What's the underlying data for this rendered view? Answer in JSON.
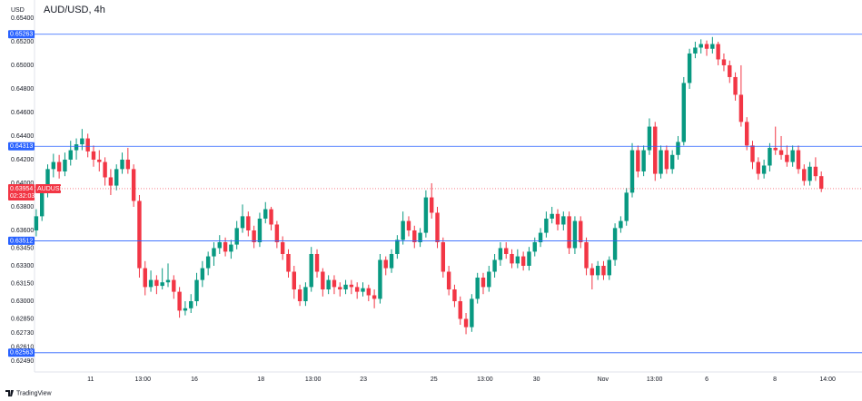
{
  "chart_data": {
    "type": "candlestick",
    "title": "AUD/USD, 4h",
    "y_label": "USD",
    "branding": "TradingView",
    "up_color": "#089981",
    "down_color": "#f23645",
    "level_color": "#2962ff",
    "grid": false,
    "ylim": [
      0.624,
      0.65515
    ],
    "xlim": [
      -0.3,
      144.1
    ],
    "yticks": [
      {
        "value": 0.654,
        "label": "0.65400"
      },
      {
        "value": 0.652,
        "label": "0.65200"
      },
      {
        "value": 0.65,
        "label": "0.65000"
      },
      {
        "value": 0.648,
        "label": "0.64800"
      },
      {
        "value": 0.646,
        "label": "0.64600"
      },
      {
        "value": 0.644,
        "label": "0.64400"
      },
      {
        "value": 0.642,
        "label": "0.64200"
      },
      {
        "value": 0.64,
        "label": "0.64000"
      },
      {
        "value": 0.638,
        "label": "0.63800"
      },
      {
        "value": 0.636,
        "label": "0.63600"
      },
      {
        "value": 0.6345,
        "label": "0.63450"
      },
      {
        "value": 0.633,
        "label": "0.63300"
      },
      {
        "value": 0.6315,
        "label": "0.63150"
      },
      {
        "value": 0.63,
        "label": "0.63000"
      },
      {
        "value": 0.6285,
        "label": "0.62850"
      },
      {
        "value": 0.6273,
        "label": "0.62730"
      },
      {
        "value": 0.6261,
        "label": "0.62610"
      },
      {
        "value": 0.6249,
        "label": "0.62490"
      }
    ],
    "xticks": [
      {
        "value": 9.5,
        "label": "11"
      },
      {
        "value": 18.6,
        "label": "13:00"
      },
      {
        "value": 27.6,
        "label": "16"
      },
      {
        "value": 39.2,
        "label": "18"
      },
      {
        "value": 48.3,
        "label": "13:00"
      },
      {
        "value": 57.1,
        "label": "23"
      },
      {
        "value": 69.4,
        "label": "25"
      },
      {
        "value": 78.3,
        "label": "13:00"
      },
      {
        "value": 87.3,
        "label": "30"
      },
      {
        "value": 98.9,
        "label": "Nov"
      },
      {
        "value": 107.9,
        "label": "13:00"
      },
      {
        "value": 117,
        "label": "6"
      },
      {
        "value": 128.9,
        "label": "8"
      },
      {
        "value": 138.1,
        "label": "14:00"
      }
    ],
    "levels": [
      {
        "value": 0.65263,
        "label": "0.65263"
      },
      {
        "value": 0.64313,
        "label": "0.64313"
      },
      {
        "value": 0.63512,
        "label": "0.63512"
      },
      {
        "value": 0.62563,
        "label": "0.62563"
      }
    ],
    "last_price": {
      "value": 0.63954,
      "label": "0.63954",
      "countdown": "02:32:03",
      "symbol": "AUDUSD"
    },
    "candles": [
      [
        0.636,
        0.6378,
        0.6355,
        0.6372
      ],
      [
        0.6372,
        0.6395,
        0.6368,
        0.6392
      ],
      [
        0.6392,
        0.6416,
        0.6388,
        0.6412
      ],
      [
        0.6412,
        0.6425,
        0.6405,
        0.6418
      ],
      [
        0.6418,
        0.6424,
        0.6404,
        0.641
      ],
      [
        0.641,
        0.6426,
        0.6406,
        0.642
      ],
      [
        0.642,
        0.6436,
        0.6415,
        0.6428
      ],
      [
        0.6428,
        0.6438,
        0.642,
        0.6433
      ],
      [
        0.6433,
        0.6446,
        0.6428,
        0.6438
      ],
      [
        0.6438,
        0.6442,
        0.6422,
        0.6427
      ],
      [
        0.6427,
        0.6432,
        0.6414,
        0.642
      ],
      [
        0.642,
        0.6428,
        0.641,
        0.6418
      ],
      [
        0.6418,
        0.6422,
        0.6398,
        0.6405
      ],
      [
        0.6405,
        0.6412,
        0.639,
        0.6398
      ],
      [
        0.6398,
        0.6416,
        0.6394,
        0.6412
      ],
      [
        0.6412,
        0.6426,
        0.6408,
        0.642
      ],
      [
        0.642,
        0.643,
        0.6408,
        0.6412
      ],
      [
        0.6412,
        0.6416,
        0.638,
        0.6385
      ],
      [
        0.6385,
        0.639,
        0.632,
        0.6328
      ],
      [
        0.6328,
        0.6334,
        0.6305,
        0.6312
      ],
      [
        0.6312,
        0.6326,
        0.6308,
        0.6318
      ],
      [
        0.6318,
        0.6322,
        0.6306,
        0.6313
      ],
      [
        0.6313,
        0.6328,
        0.631,
        0.6316
      ],
      [
        0.6316,
        0.6332,
        0.6312,
        0.6318
      ],
      [
        0.6318,
        0.6322,
        0.6302,
        0.6308
      ],
      [
        0.6308,
        0.6312,
        0.6286,
        0.6292
      ],
      [
        0.6292,
        0.63,
        0.6288,
        0.6294
      ],
      [
        0.6294,
        0.6306,
        0.629,
        0.63
      ],
      [
        0.63,
        0.6324,
        0.6296,
        0.6318
      ],
      [
        0.6318,
        0.6334,
        0.6312,
        0.6328
      ],
      [
        0.6328,
        0.6342,
        0.6322,
        0.6338
      ],
      [
        0.6338,
        0.635,
        0.633,
        0.6345
      ],
      [
        0.6345,
        0.6356,
        0.634,
        0.635
      ],
      [
        0.635,
        0.6354,
        0.6338,
        0.6342
      ],
      [
        0.6342,
        0.6352,
        0.6336,
        0.6348
      ],
      [
        0.6348,
        0.6368,
        0.6344,
        0.6362
      ],
      [
        0.6362,
        0.6382,
        0.6358,
        0.6372
      ],
      [
        0.6372,
        0.6376,
        0.6355,
        0.636
      ],
      [
        0.636,
        0.6364,
        0.6345,
        0.635
      ],
      [
        0.635,
        0.6375,
        0.6346,
        0.637
      ],
      [
        0.637,
        0.6384,
        0.6366,
        0.6378
      ],
      [
        0.6378,
        0.638,
        0.636,
        0.6365
      ],
      [
        0.6365,
        0.6368,
        0.6345,
        0.635
      ],
      [
        0.635,
        0.6355,
        0.6335,
        0.634
      ],
      [
        0.634,
        0.6344,
        0.632,
        0.6325
      ],
      [
        0.6325,
        0.633,
        0.6302,
        0.631
      ],
      [
        0.631,
        0.6314,
        0.6296,
        0.63
      ],
      [
        0.63,
        0.6316,
        0.6296,
        0.6312
      ],
      [
        0.6312,
        0.6346,
        0.6308,
        0.634
      ],
      [
        0.634,
        0.6344,
        0.632,
        0.6325
      ],
      [
        0.6325,
        0.6328,
        0.6304,
        0.631
      ],
      [
        0.631,
        0.6322,
        0.6306,
        0.6318
      ],
      [
        0.6318,
        0.6322,
        0.6306,
        0.6312
      ],
      [
        0.6312,
        0.6316,
        0.6304,
        0.631
      ],
      [
        0.631,
        0.6318,
        0.6306,
        0.6314
      ],
      [
        0.6314,
        0.6318,
        0.6306,
        0.6312
      ],
      [
        0.6312,
        0.6316,
        0.6302,
        0.6308
      ],
      [
        0.6308,
        0.6316,
        0.6304,
        0.6311
      ],
      [
        0.6311,
        0.6314,
        0.63,
        0.6305
      ],
      [
        0.6305,
        0.631,
        0.6294,
        0.6302
      ],
      [
        0.6302,
        0.634,
        0.6298,
        0.6335
      ],
      [
        0.6335,
        0.6338,
        0.6322,
        0.6328
      ],
      [
        0.6328,
        0.6344,
        0.6324,
        0.634
      ],
      [
        0.634,
        0.6356,
        0.6336,
        0.6352
      ],
      [
        0.6352,
        0.6376,
        0.6348,
        0.6368
      ],
      [
        0.6368,
        0.6372,
        0.6355,
        0.636
      ],
      [
        0.636,
        0.6364,
        0.6345,
        0.635
      ],
      [
        0.635,
        0.6362,
        0.6346,
        0.6358
      ],
      [
        0.6358,
        0.6394,
        0.6354,
        0.6388
      ],
      [
        0.6388,
        0.64,
        0.637,
        0.6375
      ],
      [
        0.6375,
        0.638,
        0.6345,
        0.635
      ],
      [
        0.635,
        0.6354,
        0.632,
        0.6325
      ],
      [
        0.6325,
        0.633,
        0.6305,
        0.631
      ],
      [
        0.631,
        0.6314,
        0.6295,
        0.63
      ],
      [
        0.63,
        0.6304,
        0.628,
        0.6285
      ],
      [
        0.6285,
        0.629,
        0.6272,
        0.6278
      ],
      [
        0.6278,
        0.6306,
        0.6274,
        0.6302
      ],
      [
        0.6302,
        0.6324,
        0.6298,
        0.632
      ],
      [
        0.632,
        0.6324,
        0.6306,
        0.6312
      ],
      [
        0.6312,
        0.633,
        0.6308,
        0.6325
      ],
      [
        0.6325,
        0.634,
        0.632,
        0.6335
      ],
      [
        0.6335,
        0.635,
        0.633,
        0.6345
      ],
      [
        0.6345,
        0.635,
        0.6336,
        0.634
      ],
      [
        0.634,
        0.6344,
        0.6328,
        0.6332
      ],
      [
        0.6332,
        0.6344,
        0.6328,
        0.6338
      ],
      [
        0.6338,
        0.6342,
        0.6326,
        0.633
      ],
      [
        0.633,
        0.6346,
        0.6326,
        0.6342
      ],
      [
        0.6342,
        0.6354,
        0.6338,
        0.635
      ],
      [
        0.635,
        0.6362,
        0.6346,
        0.6358
      ],
      [
        0.6358,
        0.6376,
        0.6354,
        0.637
      ],
      [
        0.637,
        0.638,
        0.6366,
        0.6374
      ],
      [
        0.6374,
        0.6378,
        0.636,
        0.6365
      ],
      [
        0.6365,
        0.6376,
        0.636,
        0.6372
      ],
      [
        0.6372,
        0.6376,
        0.634,
        0.6345
      ],
      [
        0.6345,
        0.6372,
        0.634,
        0.6368
      ],
      [
        0.6368,
        0.6372,
        0.6345,
        0.635
      ],
      [
        0.635,
        0.6354,
        0.6322,
        0.6328
      ],
      [
        0.6328,
        0.6332,
        0.631,
        0.6322
      ],
      [
        0.6322,
        0.6334,
        0.6318,
        0.633
      ],
      [
        0.633,
        0.6334,
        0.6318,
        0.6322
      ],
      [
        0.6322,
        0.6338,
        0.6318,
        0.6335
      ],
      [
        0.6335,
        0.6366,
        0.633,
        0.6362
      ],
      [
        0.6362,
        0.6372,
        0.6358,
        0.6368
      ],
      [
        0.6368,
        0.6396,
        0.6364,
        0.6392
      ],
      [
        0.6392,
        0.6434,
        0.6388,
        0.6428
      ],
      [
        0.6428,
        0.6432,
        0.6405,
        0.641
      ],
      [
        0.641,
        0.6432,
        0.6406,
        0.6428
      ],
      [
        0.6428,
        0.6455,
        0.6424,
        0.6448
      ],
      [
        0.6448,
        0.6452,
        0.6402,
        0.6408
      ],
      [
        0.6408,
        0.6432,
        0.6404,
        0.6428
      ],
      [
        0.6428,
        0.6432,
        0.6408,
        0.6412
      ],
      [
        0.6412,
        0.6428,
        0.6408,
        0.6424
      ],
      [
        0.6424,
        0.644,
        0.642,
        0.6435
      ],
      [
        0.6435,
        0.649,
        0.6432,
        0.6485
      ],
      [
        0.6485,
        0.6514,
        0.648,
        0.651
      ],
      [
        0.651,
        0.652,
        0.6506,
        0.6515
      ],
      [
        0.6515,
        0.6522,
        0.651,
        0.6518
      ],
      [
        0.6518,
        0.6521,
        0.6508,
        0.6514
      ],
      [
        0.6514,
        0.6524,
        0.651,
        0.6518
      ],
      [
        0.6518,
        0.652,
        0.65,
        0.6505
      ],
      [
        0.6505,
        0.651,
        0.6495,
        0.65
      ],
      [
        0.65,
        0.6504,
        0.6485,
        0.649
      ],
      [
        0.649,
        0.6494,
        0.647,
        0.6475
      ],
      [
        0.6475,
        0.65,
        0.6448,
        0.6452
      ],
      [
        0.6452,
        0.6456,
        0.6428,
        0.6432
      ],
      [
        0.6432,
        0.6436,
        0.6412,
        0.6418
      ],
      [
        0.6418,
        0.6422,
        0.6403,
        0.6408
      ],
      [
        0.6408,
        0.642,
        0.6404,
        0.6415
      ],
      [
        0.6415,
        0.6434,
        0.641,
        0.643
      ],
      [
        0.643,
        0.6448,
        0.6424,
        0.6428
      ],
      [
        0.6428,
        0.644,
        0.642,
        0.6424
      ],
      [
        0.6424,
        0.6432,
        0.6414,
        0.6418
      ],
      [
        0.6418,
        0.6432,
        0.6414,
        0.6428
      ],
      [
        0.6428,
        0.6432,
        0.6408,
        0.6412
      ],
      [
        0.6412,
        0.6416,
        0.6398,
        0.6402
      ],
      [
        0.6402,
        0.6418,
        0.6398,
        0.6414
      ],
      [
        0.6414,
        0.6422,
        0.6402,
        0.6406
      ],
      [
        0.6406,
        0.641,
        0.63925,
        0.63954
      ]
    ]
  }
}
